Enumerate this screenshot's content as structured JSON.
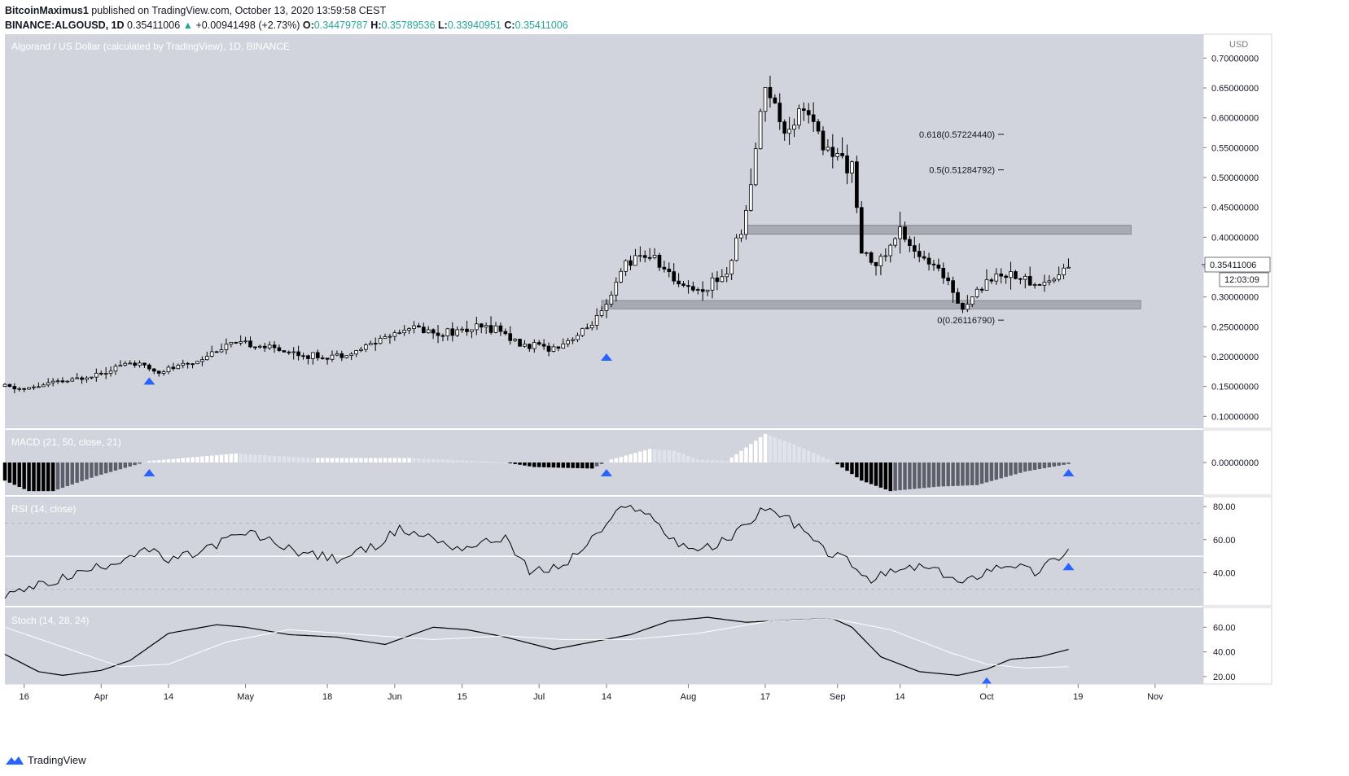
{
  "header": {
    "author": "BitcoinMaximus1",
    "published_text": "published on TradingView.com, October 13, 2020 13:59:58 CEST",
    "symbol": "BINANCE:ALGOUSD, 1D",
    "last": "0.35411006",
    "change": "+0.00941498 (+2.73%)",
    "open_label": "O:",
    "open": "0.34479787",
    "high_label": "H:",
    "high": "0.35789536",
    "low_label": "L:",
    "low": "0.33940951",
    "close_label": "C:",
    "close": "0.35411006"
  },
  "footer": {
    "brand": "TradingView"
  },
  "colors": {
    "background": "#d1d4dc",
    "up_body": "#ffffff",
    "down_body": "#000000",
    "zone": "#9598a1",
    "marker": "#2962ff",
    "rsi_band": "#ffffff"
  },
  "chart_data": [
    {
      "type": "candlestick",
      "title": "Algorand / US Dollar (calculated by TradingView), 1D, BINANCE",
      "y_axis_label": "USD",
      "y_ticks": [
        "0.70000000",
        "0.65000000",
        "0.60000000",
        "0.55000000",
        "0.50000000",
        "0.45000000",
        "0.40000000",
        "0.35000000",
        "0.30000000",
        "0.25000000",
        "0.20000000",
        "0.15000000",
        "0.10000000"
      ],
      "ylim": [
        0.08,
        0.74
      ],
      "x_ticks": [
        "16",
        "Apr",
        "14",
        "May",
        "18",
        "Jun",
        "15",
        "Jul",
        "14",
        "Aug",
        "17",
        "Sep",
        "14",
        "Oct",
        "19",
        "Nov"
      ],
      "x_tick_days": [
        0,
        16,
        30,
        46,
        63,
        77,
        91,
        107,
        121,
        138,
        154,
        169,
        182,
        200,
        219,
        235
      ],
      "x_range_days": [
        -4,
        245
      ],
      "price_label": "0.35411006",
      "countdown_label": "12:03:09",
      "anchors": [
        {
          "day": -4,
          "price": 0.15
        },
        {
          "day": 0,
          "price": 0.145
        },
        {
          "day": 5,
          "price": 0.155
        },
        {
          "day": 10,
          "price": 0.16
        },
        {
          "day": 16,
          "price": 0.175
        },
        {
          "day": 22,
          "price": 0.19
        },
        {
          "day": 28,
          "price": 0.175
        },
        {
          "day": 35,
          "price": 0.19
        },
        {
          "day": 42,
          "price": 0.22
        },
        {
          "day": 48,
          "price": 0.22
        },
        {
          "day": 54,
          "price": 0.21
        },
        {
          "day": 60,
          "price": 0.2
        },
        {
          "day": 68,
          "price": 0.205
        },
        {
          "day": 74,
          "price": 0.23
        },
        {
          "day": 80,
          "price": 0.25
        },
        {
          "day": 86,
          "price": 0.24
        },
        {
          "day": 92,
          "price": 0.245
        },
        {
          "day": 98,
          "price": 0.25
        },
        {
          "day": 103,
          "price": 0.22
        },
        {
          "day": 110,
          "price": 0.215
        },
        {
          "day": 116,
          "price": 0.24
        },
        {
          "day": 121,
          "price": 0.28
        },
        {
          "day": 125,
          "price": 0.36
        },
        {
          "day": 130,
          "price": 0.37
        },
        {
          "day": 135,
          "price": 0.33
        },
        {
          "day": 140,
          "price": 0.31
        },
        {
          "day": 146,
          "price": 0.34
        },
        {
          "day": 150,
          "price": 0.44
        },
        {
          "day": 154,
          "price": 0.66
        },
        {
          "day": 158,
          "price": 0.58
        },
        {
          "day": 162,
          "price": 0.62
        },
        {
          "day": 166,
          "price": 0.55
        },
        {
          "day": 172,
          "price": 0.52
        },
        {
          "day": 174,
          "price": 0.37
        },
        {
          "day": 178,
          "price": 0.36
        },
        {
          "day": 182,
          "price": 0.41
        },
        {
          "day": 187,
          "price": 0.36
        },
        {
          "day": 192,
          "price": 0.33
        },
        {
          "day": 195,
          "price": 0.28
        },
        {
          "day": 200,
          "price": 0.33
        },
        {
          "day": 205,
          "price": 0.34
        },
        {
          "day": 210,
          "price": 0.32
        },
        {
          "day": 214,
          "price": 0.33
        },
        {
          "day": 217,
          "price": 0.354
        }
      ],
      "zones": [
        {
          "low": 0.405,
          "high": 0.42,
          "day_start": 150,
          "day_end": 230
        },
        {
          "low": 0.28,
          "high": 0.294,
          "day_start": 120,
          "day_end": 232
        }
      ],
      "fib_levels": [
        {
          "label": "0.618(0.57224440)",
          "value": 0.5722444
        },
        {
          "label": "0.5(0.51284792)",
          "value": 0.51284792
        },
        {
          "label": "0(0.26116790)",
          "value": 0.2611679
        }
      ],
      "markers": [
        {
          "day": 26,
          "price": 0.16
        },
        {
          "day": 121,
          "price": 0.2
        }
      ]
    },
    {
      "type": "histogram",
      "title": "MACD (21, 50, close, 21)",
      "y_ticks": [
        "0.00000000"
      ],
      "zero_label": "0.00000000",
      "anchors": [
        {
          "day": -4,
          "value": -0.6
        },
        {
          "day": 1,
          "value": -0.95
        },
        {
          "day": 6,
          "value": -0.95
        },
        {
          "day": 15,
          "value": -0.45
        },
        {
          "day": 26,
          "value": 0.05
        },
        {
          "day": 44,
          "value": 0.3
        },
        {
          "day": 60,
          "value": 0.15
        },
        {
          "day": 80,
          "value": 0.15
        },
        {
          "day": 100,
          "value": 0.0
        },
        {
          "day": 106,
          "value": -0.15
        },
        {
          "day": 118,
          "value": -0.2
        },
        {
          "day": 122,
          "value": 0.1
        },
        {
          "day": 130,
          "value": 0.45
        },
        {
          "day": 135,
          "value": 0.4
        },
        {
          "day": 140,
          "value": 0.1
        },
        {
          "day": 146,
          "value": 0.05
        },
        {
          "day": 154,
          "value": 0.95
        },
        {
          "day": 160,
          "value": 0.6
        },
        {
          "day": 168,
          "value": 0.05
        },
        {
          "day": 174,
          "value": -0.6
        },
        {
          "day": 180,
          "value": -0.95
        },
        {
          "day": 190,
          "value": -0.8
        },
        {
          "day": 198,
          "value": -0.75
        },
        {
          "day": 208,
          "value": -0.3
        },
        {
          "day": 217,
          "value": -0.05
        }
      ],
      "markers": [
        {
          "day": 26,
          "value": 0.0
        },
        {
          "day": 121,
          "value": 0.0
        },
        {
          "day": 217,
          "value": 0.0
        }
      ]
    },
    {
      "type": "line",
      "title": "RSI (14, close)",
      "y_ticks": [
        "80.00",
        "60.00",
        "40.00"
      ],
      "ylim": [
        20,
        86
      ],
      "levels": [
        70,
        50,
        30
      ],
      "anchors": [
        {
          "day": -4,
          "value": 26
        },
        {
          "day": 5,
          "value": 34
        },
        {
          "day": 14,
          "value": 42
        },
        {
          "day": 20,
          "value": 48
        },
        {
          "day": 25,
          "value": 55
        },
        {
          "day": 30,
          "value": 47
        },
        {
          "day": 36,
          "value": 52
        },
        {
          "day": 42,
          "value": 60
        },
        {
          "day": 47,
          "value": 64
        },
        {
          "day": 52,
          "value": 58
        },
        {
          "day": 58,
          "value": 52
        },
        {
          "day": 65,
          "value": 48
        },
        {
          "day": 72,
          "value": 55
        },
        {
          "day": 78,
          "value": 66
        },
        {
          "day": 84,
          "value": 62
        },
        {
          "day": 90,
          "value": 55
        },
        {
          "day": 96,
          "value": 58
        },
        {
          "day": 100,
          "value": 62
        },
        {
          "day": 105,
          "value": 40
        },
        {
          "day": 112,
          "value": 44
        },
        {
          "day": 118,
          "value": 60
        },
        {
          "day": 124,
          "value": 78
        },
        {
          "day": 128,
          "value": 80
        },
        {
          "day": 134,
          "value": 62
        },
        {
          "day": 138,
          "value": 55
        },
        {
          "day": 143,
          "value": 55
        },
        {
          "day": 148,
          "value": 64
        },
        {
          "day": 154,
          "value": 80
        },
        {
          "day": 160,
          "value": 70
        },
        {
          "day": 166,
          "value": 54
        },
        {
          "day": 172,
          "value": 46
        },
        {
          "day": 175,
          "value": 35
        },
        {
          "day": 180,
          "value": 40
        },
        {
          "day": 186,
          "value": 44
        },
        {
          "day": 192,
          "value": 38
        },
        {
          "day": 195,
          "value": 33
        },
        {
          "day": 200,
          "value": 42
        },
        {
          "day": 205,
          "value": 46
        },
        {
          "day": 210,
          "value": 40
        },
        {
          "day": 214,
          "value": 48
        },
        {
          "day": 217,
          "value": 54
        }
      ],
      "markers": [
        {
          "day": 217,
          "value": 46
        }
      ]
    },
    {
      "type": "line",
      "title": "Stoch (14, 28, 24)",
      "y_ticks": [
        "60.00",
        "40.00",
        "20.00"
      ],
      "ylim": [
        14,
        76
      ],
      "series": [
        {
          "color": "#000000",
          "anchors": [
            {
              "day": -4,
              "value": 38
            },
            {
              "day": 3,
              "value": 24
            },
            {
              "day": 8,
              "value": 21
            },
            {
              "day": 16,
              "value": 25
            },
            {
              "day": 22,
              "value": 33
            },
            {
              "day": 30,
              "value": 55
            },
            {
              "day": 40,
              "value": 62
            },
            {
              "day": 46,
              "value": 60
            },
            {
              "day": 55,
              "value": 54
            },
            {
              "day": 65,
              "value": 52
            },
            {
              "day": 75,
              "value": 46
            },
            {
              "day": 85,
              "value": 60
            },
            {
              "day": 92,
              "value": 58
            },
            {
              "day": 100,
              "value": 52
            },
            {
              "day": 110,
              "value": 42
            },
            {
              "day": 118,
              "value": 48
            },
            {
              "day": 126,
              "value": 54
            },
            {
              "day": 134,
              "value": 65
            },
            {
              "day": 142,
              "value": 68
            },
            {
              "day": 150,
              "value": 64
            },
            {
              "day": 160,
              "value": 66
            },
            {
              "day": 168,
              "value": 67
            },
            {
              "day": 172,
              "value": 60
            },
            {
              "day": 178,
              "value": 36
            },
            {
              "day": 186,
              "value": 24
            },
            {
              "day": 194,
              "value": 21
            },
            {
              "day": 200,
              "value": 26
            },
            {
              "day": 205,
              "value": 34
            },
            {
              "day": 211,
              "value": 36
            },
            {
              "day": 217,
              "value": 42
            }
          ]
        },
        {
          "color": "#ffffff",
          "anchors": [
            {
              "day": -4,
              "value": 60
            },
            {
              "day": 8,
              "value": 44
            },
            {
              "day": 20,
              "value": 28
            },
            {
              "day": 30,
              "value": 30
            },
            {
              "day": 42,
              "value": 48
            },
            {
              "day": 55,
              "value": 58
            },
            {
              "day": 70,
              "value": 54
            },
            {
              "day": 85,
              "value": 50
            },
            {
              "day": 100,
              "value": 53
            },
            {
              "day": 112,
              "value": 50
            },
            {
              "day": 126,
              "value": 50
            },
            {
              "day": 140,
              "value": 55
            },
            {
              "day": 155,
              "value": 65
            },
            {
              "day": 168,
              "value": 67
            },
            {
              "day": 180,
              "value": 58
            },
            {
              "day": 192,
              "value": 40
            },
            {
              "day": 200,
              "value": 30
            },
            {
              "day": 208,
              "value": 27
            },
            {
              "day": 217,
              "value": 28
            }
          ]
        }
      ],
      "markers": [
        {
          "day": 200,
          "value": 18
        }
      ]
    }
  ]
}
